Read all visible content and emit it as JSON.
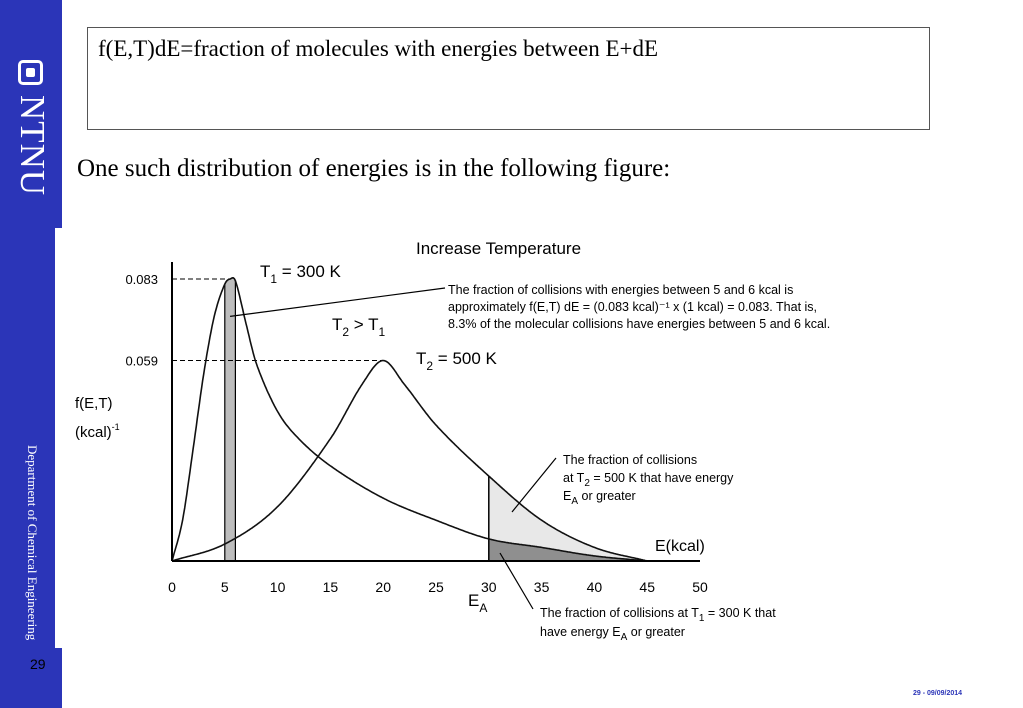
{
  "brand": {
    "name": "NTNU",
    "department": "Department of Chemical Engineering"
  },
  "page_number": "29",
  "footer": {
    "date_label": "29 - 09/09/2014"
  },
  "definition_box": {
    "text": "f(E,T)dE=fraction of molecules with energies between E+dE"
  },
  "intro_text": "One such distribution of energies is in the following figure:",
  "chart_data": {
    "type": "line",
    "title": "Increase Temperature",
    "xlabel": "E(kcal)",
    "ylabel_line1": "f(E,T)",
    "ylabel_line2": "(kcal)",
    "ylabel_sup": "-1",
    "xlim": [
      0,
      50
    ],
    "x_ticks": [
      0,
      5,
      10,
      15,
      20,
      25,
      30,
      35,
      40,
      45,
      50
    ],
    "x_tick_labels": [
      "0",
      "5",
      "10",
      "15",
      "20",
      "25",
      "30",
      "35",
      "40",
      "45",
      "50"
    ],
    "y_ticks": [
      0.083,
      0.059
    ],
    "y_tick_labels": [
      "0.083",
      "0.059"
    ],
    "series": [
      {
        "name": "T1 = 300 K",
        "peak_x": 5.5,
        "peak_y": 0.083,
        "x": [
          0,
          1,
          2,
          3,
          4,
          5,
          5.5,
          6,
          7,
          8,
          10,
          12,
          15,
          20,
          25,
          30,
          35,
          40,
          45
        ],
        "y": [
          0,
          0.012,
          0.033,
          0.055,
          0.072,
          0.0815,
          0.083,
          0.0825,
          0.07,
          0.058,
          0.044,
          0.036,
          0.028,
          0.0185,
          0.012,
          0.0065,
          0.004,
          0.0015,
          0
        ]
      },
      {
        "name": "T2 = 500 K",
        "peak_x": 20,
        "peak_y": 0.059,
        "x": [
          0,
          5,
          10,
          15,
          18,
          20,
          22,
          25,
          30,
          35,
          40,
          45
        ],
        "y": [
          0,
          0.005,
          0.016,
          0.036,
          0.052,
          0.059,
          0.052,
          0.04,
          0.025,
          0.012,
          0.004,
          0
        ]
      }
    ],
    "shaded_regions": [
      {
        "series": "T1 = 300 K",
        "x_from": 5,
        "x_to": 6
      },
      {
        "series": "T2 = 500 K",
        "x_from": 30,
        "x_to": 45
      },
      {
        "series": "T1 = 300 K",
        "x_from": 30,
        "x_to": 45
      }
    ],
    "activation_energy": {
      "x": 30,
      "label": "E",
      "label_sub": "A"
    },
    "labels": {
      "t1": {
        "text": "T",
        "sub": "1",
        "rest": " = 300 K"
      },
      "t2": {
        "text": "T",
        "sub": "2",
        "rest": " = 500 K"
      },
      "compare": {
        "a": "T",
        "a_sub": "2",
        "mid": " > T",
        "b_sub": "1"
      }
    },
    "annotations": {
      "top": [
        "The fraction of collisions with energies between 5 and 6 kcal is",
        "approximately f(E,T) dE = (0.083 kcal)⁻¹ x (1 kcal) = 0.083. That is,",
        "8.3% of the molecular collisions have energies between 5 and 6 kcal."
      ],
      "middle_line1": "The fraction of collisions",
      "middle_line2": {
        "pre": "at T",
        "sub": "2",
        "post": " = 500 K that have energy"
      },
      "middle_line3": {
        "pre": "E",
        "sub": "A",
        "post": " or greater"
      },
      "bottom_line1": {
        "pre": "The fraction of collisions at T",
        "sub": "1",
        "post": " = 300 K that"
      },
      "bottom_line2": {
        "pre": "have energy E",
        "sub": "A",
        "post": " or greater"
      }
    },
    "colors": {
      "light_shade": "#e8e8e8",
      "dark_shade": "#8f8f8f",
      "bar_shade": "#bdbdbd"
    }
  }
}
